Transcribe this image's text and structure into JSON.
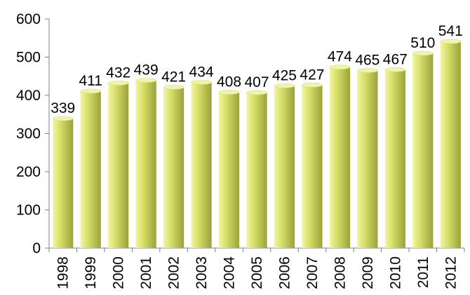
{
  "chart_data": {
    "type": "bar",
    "categories": [
      "1998",
      "1999",
      "2000",
      "2001",
      "2002",
      "2003",
      "2004",
      "2005",
      "2006",
      "2007",
      "2008",
      "2009",
      "2010",
      "2011",
      "2012"
    ],
    "values": [
      339,
      411,
      432,
      439,
      421,
      434,
      408,
      407,
      425,
      427,
      474,
      465,
      467,
      510,
      541
    ],
    "ylim": [
      0,
      600
    ],
    "yticks": [
      0,
      100,
      200,
      300,
      400,
      500,
      600
    ],
    "grid": false,
    "legend": "none",
    "colors": {
      "bar_light": "#f2f5a4",
      "bar_mid": "#d8e06a",
      "bar_dark": "#9aa23a",
      "bar_top": "#eef2b6",
      "axis": "#808080"
    }
  }
}
